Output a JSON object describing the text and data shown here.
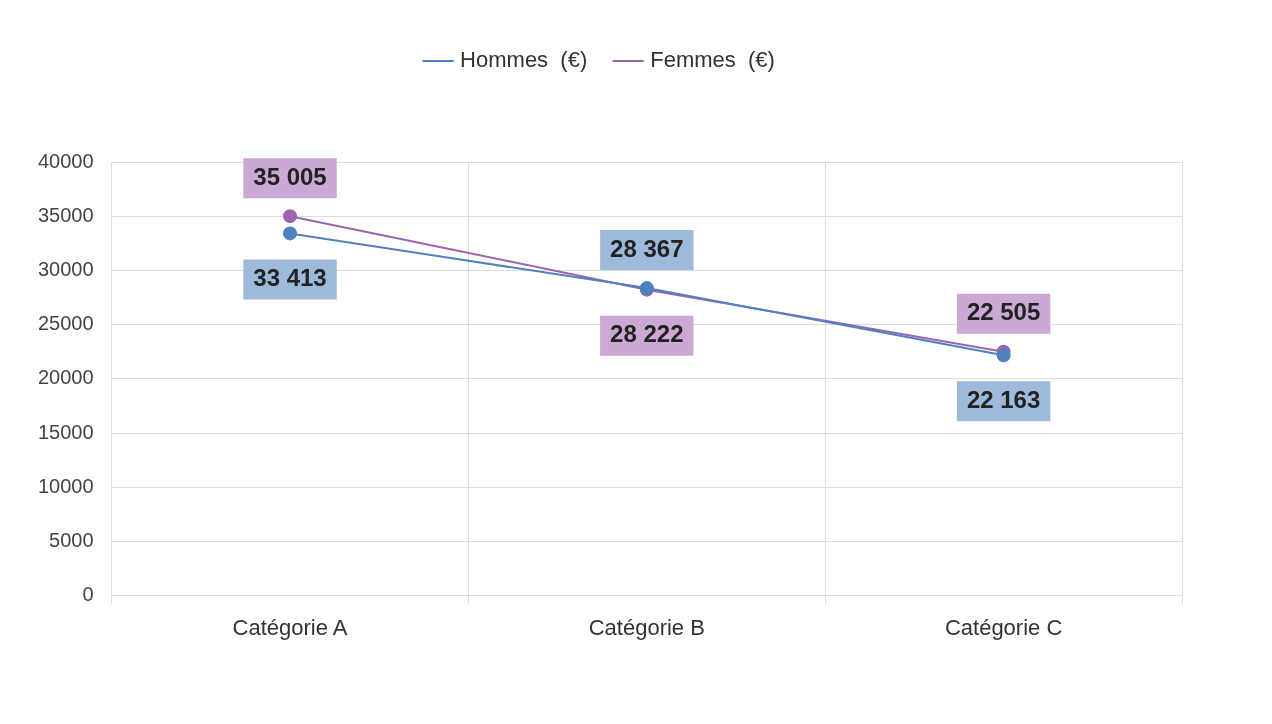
{
  "chart_data": {
    "type": "line",
    "categories": [
      "Catégorie A",
      "Catégorie B",
      "Catégorie C"
    ],
    "series": [
      {
        "name": "Hommes  (€)",
        "color": "#4f81bd",
        "values": [
          33413,
          28367,
          22163
        ],
        "value_labels": [
          "33 413",
          "28 367",
          "22 163"
        ]
      },
      {
        "name": "Femmes  (€)",
        "color": "#9e63b0",
        "values": [
          35005,
          28222,
          22505
        ],
        "value_labels": [
          "35 005",
          "28 222",
          "22 505"
        ]
      }
    ],
    "ylim": [
      0,
      40000
    ],
    "yticks": [
      0,
      5000,
      10000,
      15000,
      20000,
      25000,
      30000,
      35000,
      40000
    ],
    "grid": true,
    "legend": "top",
    "marker": "circle",
    "line_style": "solid"
  }
}
